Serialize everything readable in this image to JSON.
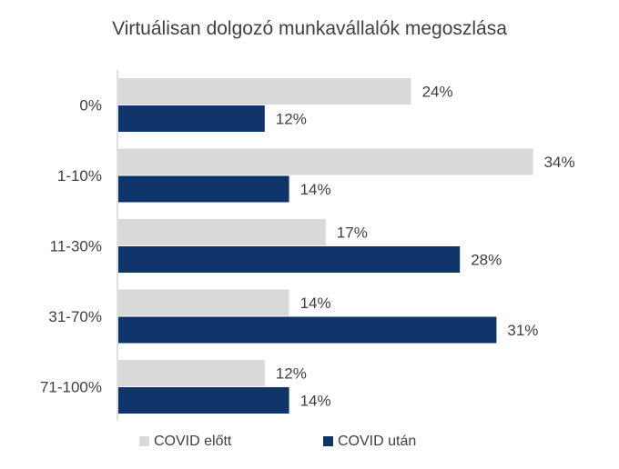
{
  "chart_data": {
    "type": "bar",
    "orientation": "horizontal",
    "title": "Virtuálisan dolgozó munkavállalók megoszlása",
    "categories": [
      "0%",
      "1-10%",
      "11-30%",
      "31-70%",
      "71-100%"
    ],
    "series": [
      {
        "name": "COVID előtt",
        "color": "#d9d9d9",
        "values": [
          24,
          34,
          17,
          14,
          12
        ],
        "labels": [
          "24%",
          "34%",
          "17%",
          "14%",
          "12%"
        ]
      },
      {
        "name": "COVID után",
        "color": "#0e3469",
        "values": [
          12,
          14,
          28,
          31,
          14
        ],
        "labels": [
          "12%",
          "14%",
          "28%",
          "31%",
          "14%"
        ]
      }
    ],
    "xlim": [
      0,
      40
    ],
    "grid": false,
    "legend": "bottom"
  }
}
